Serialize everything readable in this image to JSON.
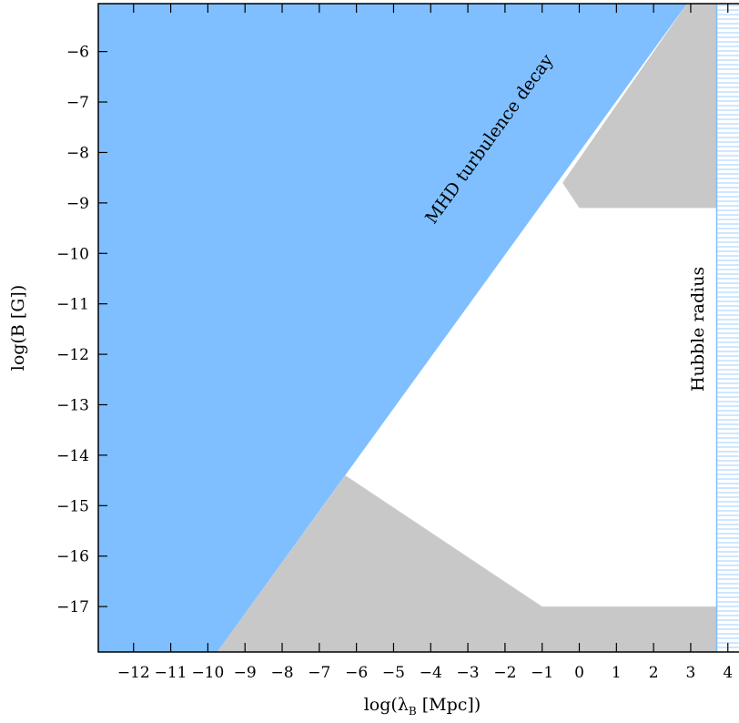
{
  "chart_data": {
    "type": "area",
    "xlabel": "log(λ",
    "xlabel_sub": "B",
    "xlabel_tail": " [Mpc])",
    "ylabel": "log(B [G])",
    "xlim": [
      -12.95,
      4.3
    ],
    "ylim": [
      -17.9,
      -5.05
    ],
    "xticks": [
      -12,
      -11,
      -10,
      -9,
      -8,
      -7,
      -6,
      -5,
      -4,
      -3,
      -2,
      -1,
      0,
      1,
      2,
      3,
      4
    ],
    "xtick_labels": [
      "−12",
      "−11",
      "−10",
      "−9",
      "−8",
      "−7",
      "−6",
      "−5",
      "−4",
      "−3",
      "−2",
      "−1",
      "0",
      "1",
      "2",
      "3",
      "4"
    ],
    "yticks": [
      -6,
      -7,
      -8,
      -9,
      -10,
      -11,
      -12,
      -13,
      -14,
      -15,
      -16,
      -17
    ],
    "ytick_labels": [
      "−6",
      "−7",
      "−8",
      "−9",
      "−10",
      "−11",
      "−12",
      "−13",
      "−14",
      "−15",
      "−16",
      "−17"
    ],
    "regions": [
      {
        "kind": "mhd-excluded",
        "color": "#7fbfff",
        "points": [
          [
            -12.95,
            -5.05
          ],
          [
            2.9,
            -5.05
          ],
          [
            -9.75,
            -17.9
          ],
          [
            -12.95,
            -17.9
          ]
        ]
      },
      {
        "kind": "upper-gray",
        "color": "#c8c8c8",
        "points": [
          [
            2.9,
            -5.05
          ],
          [
            3.7,
            -5.05
          ],
          [
            3.7,
            -9.1
          ],
          [
            0.0,
            -9.1
          ],
          [
            -0.45,
            -8.6
          ]
        ]
      },
      {
        "kind": "lower-gray",
        "color": "#c8c8c8",
        "points": [
          [
            -6.3,
            -14.4
          ],
          [
            -1.0,
            -17.0
          ],
          [
            3.7,
            -17.0
          ],
          [
            3.7,
            -17.9
          ],
          [
            -9.75,
            -17.9
          ]
        ]
      },
      {
        "kind": "hubble-hatch",
        "color": "#7fbfff",
        "x_from": 3.7,
        "points": [
          [
            3.7,
            -5.05
          ],
          [
            4.3,
            -5.05
          ],
          [
            4.3,
            -17.9
          ],
          [
            3.7,
            -17.9
          ]
        ]
      }
    ],
    "annotations": [
      {
        "text": "MHD turbulence decay",
        "x": -2.3,
        "y": -7.8,
        "rotate_along_line": true
      },
      {
        "text": "Hubble radius",
        "x": 3.35,
        "y": -11.5,
        "vertical": true
      }
    ]
  }
}
